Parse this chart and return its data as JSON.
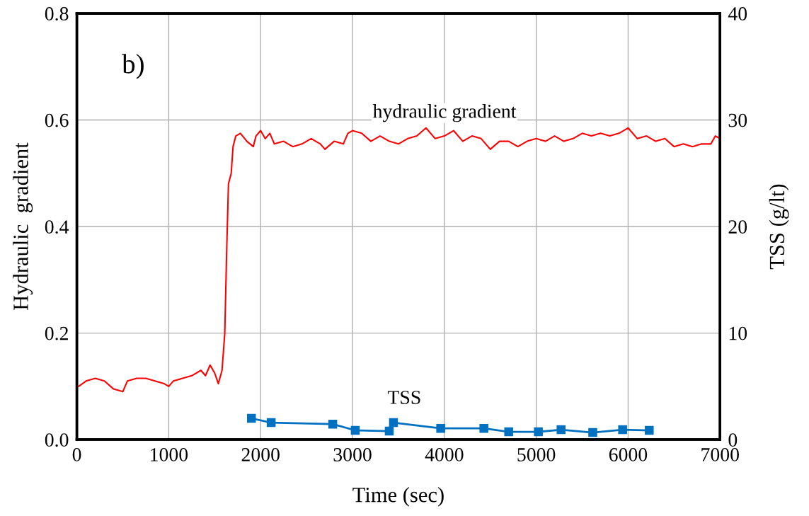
{
  "chart_data": {
    "type": "line",
    "xlabel": "Time (sec)",
    "ylabel": "Hydraulic  gradient",
    "y2label": "TSS (g/lt)",
    "xlim": [
      0,
      7000
    ],
    "xticks": [
      0,
      1000,
      2000,
      3000,
      4000,
      5000,
      6000,
      7000
    ],
    "ylim": [
      0,
      0.8
    ],
    "yticks": [
      {
        "value": 0,
        "label": "0.0"
      },
      0.2,
      0.4,
      0.6,
      0.8
    ],
    "y2lim": [
      0,
      40
    ],
    "y2ticks": [
      0,
      10,
      20,
      30,
      40
    ],
    "grid": true,
    "legend": false,
    "annotations": [
      "b)"
    ],
    "series": [
      {
        "name": "hydraulic gradient",
        "color": "#ff0000",
        "marker": "none",
        "x": [
          20,
          100,
          200,
          300,
          400,
          500,
          550,
          650,
          750,
          850,
          950,
          1000,
          1050,
          1150,
          1250,
          1350,
          1400,
          1450,
          1500,
          1540,
          1580,
          1610,
          1630,
          1650,
          1680,
          1700,
          1730,
          1780,
          1850,
          1920,
          1950,
          2000,
          2050,
          2100,
          2150,
          2250,
          2350,
          2450,
          2550,
          2650,
          2700,
          2800,
          2900,
          2950,
          3000,
          3100,
          3200,
          3300,
          3400,
          3500,
          3600,
          3700,
          3800,
          3900,
          4000,
          4100,
          4200,
          4300,
          4400,
          4500,
          4600,
          4700,
          4800,
          4900,
          5000,
          5100,
          5200,
          5300,
          5400,
          5500,
          5600,
          5700,
          5800,
          5900,
          6000,
          6100,
          6200,
          6300,
          6400,
          6500,
          6600,
          6700,
          6800,
          6900,
          6950,
          7000
        ],
        "values": [
          0.1,
          0.11,
          0.115,
          0.11,
          0.095,
          0.09,
          0.11,
          0.115,
          0.115,
          0.11,
          0.105,
          0.1,
          0.11,
          0.115,
          0.12,
          0.13,
          0.12,
          0.14,
          0.125,
          0.105,
          0.13,
          0.2,
          0.35,
          0.48,
          0.5,
          0.55,
          0.57,
          0.575,
          0.56,
          0.55,
          0.57,
          0.58,
          0.565,
          0.575,
          0.555,
          0.56,
          0.55,
          0.555,
          0.565,
          0.555,
          0.545,
          0.56,
          0.555,
          0.575,
          0.58,
          0.575,
          0.56,
          0.57,
          0.56,
          0.555,
          0.565,
          0.57,
          0.585,
          0.565,
          0.57,
          0.58,
          0.56,
          0.57,
          0.565,
          0.545,
          0.56,
          0.56,
          0.55,
          0.56,
          0.565,
          0.56,
          0.57,
          0.56,
          0.565,
          0.575,
          0.57,
          0.575,
          0.57,
          0.575,
          0.585,
          0.565,
          0.57,
          0.56,
          0.565,
          0.55,
          0.555,
          0.55,
          0.555,
          0.555,
          0.57,
          0.565
        ]
      },
      {
        "name": "TSS",
        "color": "#0070c0",
        "marker": "square",
        "axis": "y2",
        "x": [
          1900,
          2115,
          2785,
          3030,
          3400,
          3446,
          3960,
          4430,
          4700,
          5023,
          5270,
          5615,
          5940,
          6230
        ],
        "values": [
          2.0,
          1.6,
          1.46,
          0.87,
          0.8,
          1.6,
          1.06,
          1.06,
          0.73,
          0.73,
          0.93,
          0.67,
          0.93,
          0.87
        ]
      }
    ]
  }
}
